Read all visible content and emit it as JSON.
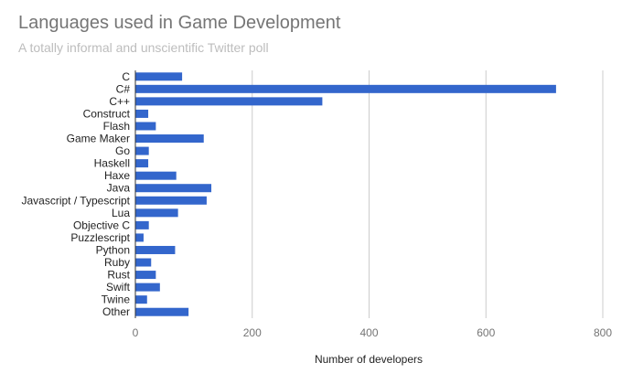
{
  "chart_data": {
    "type": "bar",
    "orientation": "horizontal",
    "title": "Languages used in Game Development",
    "subtitle": "A totally informal and unscientific Twitter poll",
    "xlabel": "Number of developers",
    "ylabel": "",
    "xlim": [
      0,
      800
    ],
    "xticks": [
      0,
      200,
      400,
      600,
      800
    ],
    "grid": true,
    "bar_color": "#3366cc",
    "categories": [
      "C",
      "C#",
      "C++",
      "Construct",
      "Flash",
      "Game Maker",
      "Go",
      "Haskell",
      "Haxe",
      "Java",
      "Javascript / Typescript",
      "Lua",
      "Objective C",
      "Puzzlescript",
      "Python",
      "Ruby",
      "Rust",
      "Swift",
      "Twine",
      "Other"
    ],
    "values": [
      80,
      720,
      320,
      22,
      35,
      117,
      23,
      22,
      70,
      130,
      122,
      73,
      23,
      14,
      68,
      27,
      35,
      42,
      20,
      91
    ]
  }
}
